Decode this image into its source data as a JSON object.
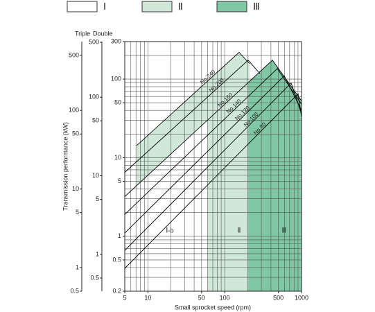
{
  "chart_data": {
    "type": "line",
    "x_label": "Small sprocket speed (rpm)",
    "y_label": "Transmission performance (kW)",
    "log_x": true,
    "log_y": true,
    "grid": true,
    "xlim": [
      5,
      1000
    ],
    "xticks": [
      5,
      10,
      50,
      100,
      500,
      1000
    ],
    "ylim": [
      0.2,
      300
    ],
    "yticks": [
      0.2,
      0.5,
      1,
      5,
      10,
      50,
      100,
      300
    ],
    "double_axis": {
      "label": "Double",
      "ylim": [
        0.34,
        510
      ],
      "yticks": [
        0.5,
        1,
        5,
        10,
        50,
        100,
        500
      ]
    },
    "triple_axis": {
      "label": "Triple",
      "ylim": [
        0.5,
        750
      ],
      "yticks": [
        0.5,
        1,
        5,
        10,
        50,
        100,
        500
      ]
    },
    "regions": [
      {
        "name": "Ⅰ",
        "color": "#ffffff",
        "label": "Ⅰ-b"
      },
      {
        "name": "Ⅱ",
        "color": "#cfe8d8",
        "label": "Ⅱ",
        "x_start": 60
      },
      {
        "name": "Ⅲ",
        "color": "#80c7a3",
        "label": "Ⅲ",
        "x_start": 200
      }
    ],
    "series": [
      {
        "name": "No.240",
        "color": "#000000",
        "x": [
          7.1,
          154,
          210
        ],
        "values": [
          14.2,
          219,
          157
        ]
      },
      {
        "name": "No.200",
        "color": "#000000",
        "x": [
          5,
          202,
          288
        ],
        "values": [
          6.5,
          174,
          117
        ]
      },
      {
        "name": "No.160",
        "color": "#000000",
        "x": [
          5,
          418,
          1000
        ],
        "values": [
          3.2,
          174,
          53
        ]
      },
      {
        "name": "No.140",
        "color": "#000000",
        "x": [
          5,
          484,
          1000
        ],
        "values": [
          1.9,
          136,
          48
        ]
      },
      {
        "name": "No.120",
        "color": "#000000",
        "x": [
          5,
          596,
          1000
        ],
        "values": [
          1.1,
          110,
          40
        ]
      },
      {
        "name": "No.100",
        "color": "#000000",
        "x": [
          5,
          733,
          1000
        ],
        "values": [
          0.66,
          89,
          36
        ]
      },
      {
        "name": "No.80",
        "color": "#000000",
        "x": [
          5,
          902,
          1000
        ],
        "values": [
          0.39,
          65,
          33
        ]
      }
    ]
  }
}
